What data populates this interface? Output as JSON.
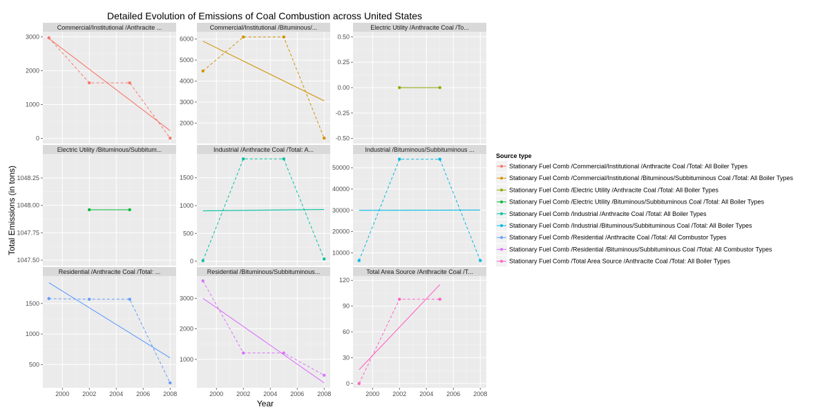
{
  "chart_data": {
    "type": "line",
    "title": "Detailed Evolution of Emissions of Coal Combustion across United States",
    "xlabel": "Year",
    "ylabel": "Total Emissions (in tons)",
    "x_ticks": [
      2000,
      2002,
      2004,
      2006,
      2008
    ],
    "xlim": [
      1998.55,
      2008.45
    ],
    "legend": {
      "title": "Source type",
      "placement": "right",
      "entries": [
        "Stationary Fuel Comb /Commercial/Institutional /Anthracite Coal /Total: All Boiler Types",
        "Stationary Fuel Comb /Commercial/Institutional /Bituminous/Subbituminous Coal /Total: All Boiler Types",
        "Stationary Fuel Comb /Electric Utility /Anthracite Coal /Total: All Boiler Types",
        "Stationary Fuel Comb /Electric Utility /Bituminous/Subbituminous Coal /Total: All Boiler Types",
        "Stationary Fuel Comb /Industrial /Anthracite Coal /Total: All Boiler Types",
        "Stationary Fuel Comb /Industrial /Bituminous/Subbituminous Coal /Total: All Boiler Types",
        "Stationary Fuel Comb /Residential /Anthracite Coal /Total: All Combustor Types",
        "Stationary Fuel Comb /Residential /Bituminous/Subbituminous Coal /Total: All Combustor Types",
        "Stationary Fuel Comb /Total Area Source /Anthracite Coal /Total: All Boiler Types"
      ]
    },
    "panels": [
      {
        "strip": "Commercial/Institutional /Anthracite ...",
        "color": "#F8766D",
        "x": [
          1999,
          2002,
          2005,
          2008
        ],
        "y": [
          2970,
          1640,
          1640,
          10
        ],
        "trend": [
          [
            1999,
            2950
          ],
          [
            2008,
            230
          ]
        ],
        "y_ticks": [
          0,
          1000,
          2000,
          3000
        ],
        "y_tick_labels": [
          "0",
          "1000",
          "2000",
          "3000"
        ],
        "ylim": [
          -150,
          3150
        ]
      },
      {
        "strip": "Commercial/Institutional /Bituminous/...",
        "color": "#D39200",
        "x": [
          1999,
          2002,
          2005,
          2008
        ],
        "y": [
          4480,
          6100,
          6100,
          1280
        ],
        "trend": [
          [
            1999,
            5900
          ],
          [
            2008,
            3060
          ]
        ],
        "y_ticks": [
          2000,
          3000,
          4000,
          5000,
          6000
        ],
        "y_tick_labels": [
          "2000",
          "3000",
          "4000",
          "5000",
          "6000"
        ],
        "ylim": [
          1025,
          6350
        ]
      },
      {
        "strip": "Electric Utility /Anthracite Coal /To...",
        "color": "#93AA00",
        "x": [
          2002,
          2005
        ],
        "y": [
          0,
          0
        ],
        "trend": [
          [
            2002,
            0
          ],
          [
            2005,
            0
          ]
        ],
        "y_ticks": [
          -0.5,
          -0.25,
          0,
          0.25,
          0.5
        ],
        "y_tick_labels": [
          "-0.50",
          "-0.25",
          "0.00",
          "0.25",
          "0.50"
        ],
        "ylim": [
          -0.55,
          0.55
        ]
      },
      {
        "strip": "Electric Utility /Bituminous/Subbitum...",
        "color": "#00BA38",
        "x": [
          2002,
          2005
        ],
        "y": [
          1047.96,
          1047.96
        ],
        "trend": [
          [
            2002,
            1047.96
          ],
          [
            2005,
            1047.96
          ]
        ],
        "y_ticks": [
          1047.5,
          1047.75,
          1048.0,
          1048.25
        ],
        "y_tick_labels": [
          "1047.50",
          "1047.75",
          "1048.00",
          "1048.25"
        ],
        "ylim": [
          1047.45,
          1048.47
        ]
      },
      {
        "strip": "Industrial /Anthracite Coal /Total: A...",
        "color": "#00C19F",
        "x": [
          1999,
          2002,
          2005,
          2008
        ],
        "y": [
          10,
          1840,
          1840,
          40
        ],
        "trend": [
          [
            1999,
            905
          ],
          [
            2008,
            930
          ]
        ],
        "y_ticks": [
          0,
          500,
          1000,
          1500
        ],
        "y_tick_labels": [
          "0",
          "500",
          "1000",
          "1500"
        ],
        "ylim": [
          -80,
          1930
        ]
      },
      {
        "strip": "Industrial /Bituminous/Subbituminous ...",
        "color": "#00B9E3",
        "x": [
          1999,
          2002,
          2005,
          2008
        ],
        "y": [
          6400,
          54000,
          54000,
          6400
        ],
        "trend": [
          [
            1999,
            30000
          ],
          [
            2008,
            30100
          ]
        ],
        "y_ticks": [
          10000,
          20000,
          30000,
          40000,
          50000
        ],
        "y_tick_labels": [
          "10000",
          "20000",
          "30000",
          "40000",
          "50000"
        ],
        "ylim": [
          4000,
          56500
        ]
      },
      {
        "strip": "Residential /Anthracite Coal /Total: ...",
        "color": "#619CFF",
        "x": [
          1999,
          2002,
          2005,
          2008
        ],
        "y": [
          1580,
          1570,
          1570,
          200
        ],
        "trend": [
          [
            1999,
            1840
          ],
          [
            2008,
            610
          ]
        ],
        "y_ticks": [
          500,
          1000,
          1500
        ],
        "y_tick_labels": [
          "500",
          "1000",
          "1500"
        ],
        "ylim": [
          120,
          1950
        ]
      },
      {
        "strip": "Residential /Bituminous/Subbituminous...",
        "color": "#DB72FB",
        "x": [
          1999,
          2002,
          2005,
          2008
        ],
        "y": [
          3570,
          1210,
          1210,
          480
        ],
        "trend": [
          [
            1999,
            3000
          ],
          [
            2008,
            230
          ]
        ],
        "y_ticks": [
          1000,
          2000,
          3000
        ],
        "y_tick_labels": [
          "1000",
          "2000",
          "3000"
        ],
        "ylim": [
          70,
          3730
        ]
      },
      {
        "strip": "Total Area Source /Anthracite Coal /T...",
        "color": "#FF61C3",
        "x": [
          1999,
          2002,
          2005
        ],
        "y": [
          0,
          98,
          98
        ],
        "trend": [
          [
            1999,
            16
          ],
          [
            2005,
            115
          ]
        ],
        "y_ticks": [
          0,
          30,
          60,
          90,
          120
        ],
        "y_tick_labels": [
          "0",
          "30",
          "60",
          "90",
          "120"
        ],
        "ylim": [
          -5,
          125
        ]
      }
    ]
  }
}
